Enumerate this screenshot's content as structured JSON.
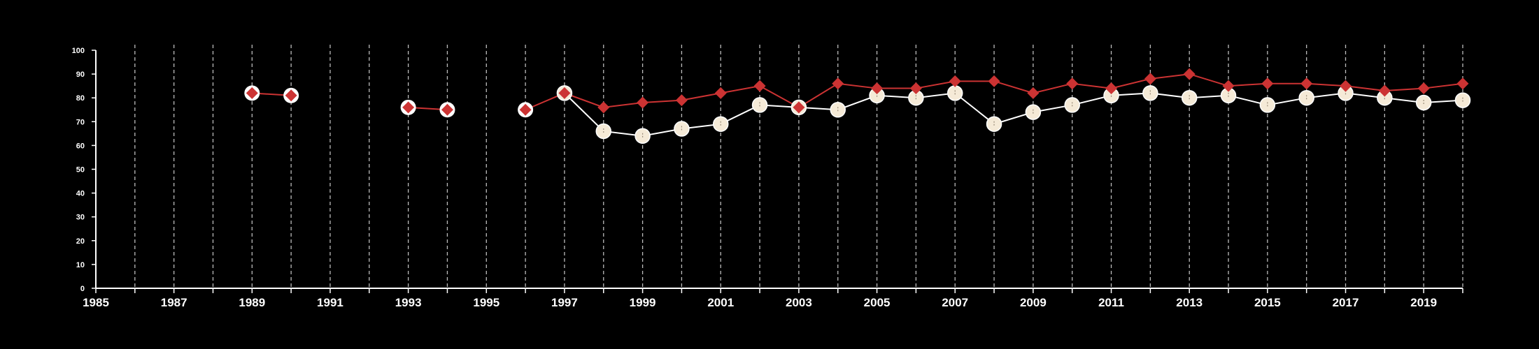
{
  "chart_data": {
    "type": "line",
    "title": "",
    "xlabel": "",
    "ylabel": "",
    "xlim": [
      1985,
      2020
    ],
    "ylim": [
      0,
      100
    ],
    "x_ticks_labeled": [
      1985,
      1987,
      1989,
      1991,
      1993,
      1995,
      1997,
      1999,
      2001,
      2003,
      2005,
      2007,
      2009,
      2011,
      2013,
      2015,
      2017,
      2019
    ],
    "y_ticks": [
      0,
      10,
      20,
      30,
      40,
      50,
      60,
      70,
      80,
      90,
      100
    ],
    "grid": "vertical-dashed",
    "background": "#000000",
    "series": [
      {
        "marker": "circle",
        "color": "#f5ead7",
        "line_color": "#ffffff",
        "points": [
          {
            "x": 1997,
            "y": 82
          },
          {
            "x": 1998,
            "y": 66
          },
          {
            "x": 1999,
            "y": 64
          },
          {
            "x": 2000,
            "y": 67
          },
          {
            "x": 2001,
            "y": 69
          },
          {
            "x": 2002,
            "y": 77
          },
          {
            "x": 2003,
            "y": 76
          },
          {
            "x": 2004,
            "y": 75
          },
          {
            "x": 2005,
            "y": 81
          },
          {
            "x": 2006,
            "y": 80
          },
          {
            "x": 2007,
            "y": 82
          },
          {
            "x": 2008,
            "y": 69
          },
          {
            "x": 2009,
            "y": 74
          },
          {
            "x": 2010,
            "y": 77
          },
          {
            "x": 2011,
            "y": 81
          },
          {
            "x": 2012,
            "y": 82
          },
          {
            "x": 2013,
            "y": 80
          },
          {
            "x": 2014,
            "y": 81
          },
          {
            "x": 2015,
            "y": 77
          },
          {
            "x": 2016,
            "y": 80
          },
          {
            "x": 2017,
            "y": 82
          },
          {
            "x": 2018,
            "y": 80
          },
          {
            "x": 2019,
            "y": 78
          },
          {
            "x": 2020,
            "y": 79
          }
        ]
      },
      {
        "marker": "diamond",
        "color": "#cc3333",
        "line_color": "#cc3333",
        "points": [
          {
            "x": 1989,
            "y": 82
          },
          {
            "x": 1990,
            "y": 81
          },
          {
            "x": 1993,
            "y": 76
          },
          {
            "x": 1994,
            "y": 75
          },
          {
            "x": 1996,
            "y": 75
          },
          {
            "x": 1997,
            "y": 82
          },
          {
            "x": 1998,
            "y": 76
          },
          {
            "x": 1999,
            "y": 78
          },
          {
            "x": 2000,
            "y": 79
          },
          {
            "x": 2001,
            "y": 82
          },
          {
            "x": 2002,
            "y": 85
          },
          {
            "x": 2003,
            "y": 76
          },
          {
            "x": 2004,
            "y": 86
          },
          {
            "x": 2005,
            "y": 84
          },
          {
            "x": 2006,
            "y": 84
          },
          {
            "x": 2007,
            "y": 87
          },
          {
            "x": 2008,
            "y": 87
          },
          {
            "x": 2009,
            "y": 82
          },
          {
            "x": 2010,
            "y": 86
          },
          {
            "x": 2011,
            "y": 84
          },
          {
            "x": 2012,
            "y": 88
          },
          {
            "x": 2013,
            "y": 90
          },
          {
            "x": 2014,
            "y": 85
          },
          {
            "x": 2015,
            "y": 86
          },
          {
            "x": 2016,
            "y": 86
          },
          {
            "x": 2017,
            "y": 85
          },
          {
            "x": 2018,
            "y": 83
          },
          {
            "x": 2019,
            "y": 84
          },
          {
            "x": 2020,
            "y": 86
          }
        ]
      }
    ],
    "standalone_markers": [
      {
        "x": 1989,
        "y": 82
      },
      {
        "x": 1990,
        "y": 81
      },
      {
        "x": 1993,
        "y": 76
      },
      {
        "x": 1994,
        "y": 75
      },
      {
        "x": 1996,
        "y": 75
      },
      {
        "x": 2003,
        "y": 76
      }
    ]
  }
}
